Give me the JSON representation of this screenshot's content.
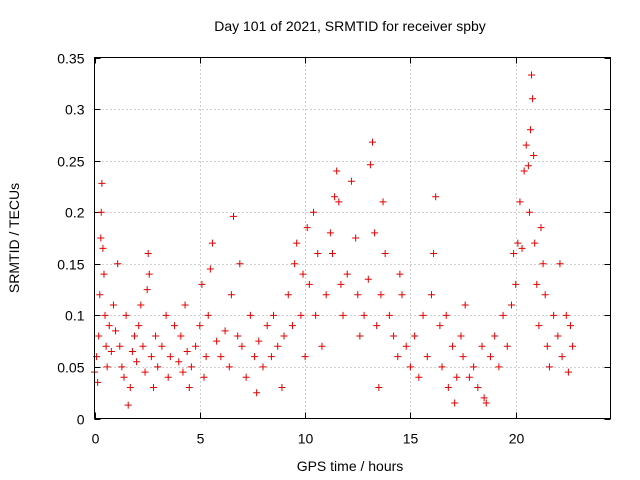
{
  "chart_data": {
    "type": "scatter",
    "title": "Day 101 of 2021, SRMTID for receiver spby",
    "xlabel": "GPS time / hours",
    "ylabel": "SRMTID / TECUs",
    "xlim": [
      0,
      24.5
    ],
    "ylim": [
      0,
      0.35
    ],
    "xticks": [
      0,
      5,
      10,
      15,
      20
    ],
    "xtick_labels": [
      "0",
      "5",
      "10",
      "15",
      "20"
    ],
    "yticks": [
      0,
      0.05,
      0.1,
      0.15,
      0.2,
      0.25,
      0.3,
      0.35
    ],
    "ytick_labels": [
      "0",
      "0.05",
      "0.1",
      "0.15",
      "0.2",
      "0.25",
      "0.3",
      "0.35"
    ],
    "grid": true,
    "marker": "+",
    "color": "#e60000",
    "series": [
      {
        "name": "SRMTID spby",
        "points": [
          [
            0.0,
            0.045
          ],
          [
            0.1,
            0.06
          ],
          [
            0.15,
            0.035
          ],
          [
            0.2,
            0.08
          ],
          [
            0.25,
            0.12
          ],
          [
            0.3,
            0.175
          ],
          [
            0.32,
            0.2
          ],
          [
            0.35,
            0.228
          ],
          [
            0.4,
            0.165
          ],
          [
            0.45,
            0.14
          ],
          [
            0.5,
            0.1
          ],
          [
            0.55,
            0.07
          ],
          [
            0.6,
            0.05
          ],
          [
            0.7,
            0.09
          ],
          [
            0.8,
            0.065
          ],
          [
            0.9,
            0.11
          ],
          [
            1.0,
            0.085
          ],
          [
            1.1,
            0.15
          ],
          [
            1.2,
            0.07
          ],
          [
            1.3,
            0.05
          ],
          [
            1.4,
            0.04
          ],
          [
            1.5,
            0.1
          ],
          [
            1.6,
            0.013
          ],
          [
            1.7,
            0.03
          ],
          [
            1.8,
            0.065
          ],
          [
            1.9,
            0.08
          ],
          [
            2.0,
            0.055
          ],
          [
            2.1,
            0.09
          ],
          [
            2.2,
            0.11
          ],
          [
            2.3,
            0.07
          ],
          [
            2.4,
            0.045
          ],
          [
            2.5,
            0.125
          ],
          [
            2.55,
            0.16
          ],
          [
            2.6,
            0.14
          ],
          [
            2.7,
            0.06
          ],
          [
            2.8,
            0.03
          ],
          [
            2.9,
            0.08
          ],
          [
            3.0,
            0.05
          ],
          [
            3.2,
            0.07
          ],
          [
            3.4,
            0.1
          ],
          [
            3.5,
            0.04
          ],
          [
            3.6,
            0.06
          ],
          [
            3.8,
            0.09
          ],
          [
            4.0,
            0.055
          ],
          [
            4.1,
            0.08
          ],
          [
            4.2,
            0.045
          ],
          [
            4.3,
            0.11
          ],
          [
            4.4,
            0.065
          ],
          [
            4.5,
            0.03
          ],
          [
            4.6,
            0.05
          ],
          [
            4.8,
            0.07
          ],
          [
            5.0,
            0.09
          ],
          [
            5.1,
            0.13
          ],
          [
            5.2,
            0.04
          ],
          [
            5.3,
            0.06
          ],
          [
            5.4,
            0.1
          ],
          [
            5.5,
            0.145
          ],
          [
            5.6,
            0.17
          ],
          [
            5.8,
            0.075
          ],
          [
            6.0,
            0.06
          ],
          [
            6.2,
            0.085
          ],
          [
            6.4,
            0.05
          ],
          [
            6.5,
            0.12
          ],
          [
            6.6,
            0.196
          ],
          [
            6.8,
            0.08
          ],
          [
            6.9,
            0.15
          ],
          [
            7.0,
            0.07
          ],
          [
            7.2,
            0.04
          ],
          [
            7.4,
            0.1
          ],
          [
            7.6,
            0.06
          ],
          [
            7.7,
            0.025
          ],
          [
            7.8,
            0.075
          ],
          [
            8.0,
            0.05
          ],
          [
            8.2,
            0.09
          ],
          [
            8.4,
            0.06
          ],
          [
            8.5,
            0.1
          ],
          [
            8.7,
            0.07
          ],
          [
            8.9,
            0.03
          ],
          [
            9.0,
            0.08
          ],
          [
            9.2,
            0.12
          ],
          [
            9.4,
            0.09
          ],
          [
            9.5,
            0.15
          ],
          [
            9.6,
            0.17
          ],
          [
            9.8,
            0.1
          ],
          [
            9.9,
            0.14
          ],
          [
            10.0,
            0.06
          ],
          [
            10.1,
            0.185
          ],
          [
            10.2,
            0.13
          ],
          [
            10.4,
            0.2
          ],
          [
            10.5,
            0.1
          ],
          [
            10.6,
            0.16
          ],
          [
            10.8,
            0.07
          ],
          [
            11.0,
            0.12
          ],
          [
            11.2,
            0.18
          ],
          [
            11.3,
            0.16
          ],
          [
            11.4,
            0.215
          ],
          [
            11.5,
            0.24
          ],
          [
            11.6,
            0.21
          ],
          [
            11.7,
            0.13
          ],
          [
            11.8,
            0.1
          ],
          [
            12.0,
            0.14
          ],
          [
            12.2,
            0.23
          ],
          [
            12.4,
            0.175
          ],
          [
            12.5,
            0.12
          ],
          [
            12.6,
            0.08
          ],
          [
            12.8,
            0.1
          ],
          [
            13.0,
            0.135
          ],
          [
            13.1,
            0.246
          ],
          [
            13.2,
            0.268
          ],
          [
            13.3,
            0.18
          ],
          [
            13.4,
            0.09
          ],
          [
            13.5,
            0.03
          ],
          [
            13.6,
            0.12
          ],
          [
            13.7,
            0.21
          ],
          [
            13.8,
            0.16
          ],
          [
            14.0,
            0.1
          ],
          [
            14.2,
            0.08
          ],
          [
            14.4,
            0.06
          ],
          [
            14.5,
            0.14
          ],
          [
            14.6,
            0.12
          ],
          [
            14.8,
            0.07
          ],
          [
            15.0,
            0.05
          ],
          [
            15.2,
            0.08
          ],
          [
            15.4,
            0.04
          ],
          [
            15.6,
            0.1
          ],
          [
            15.8,
            0.06
          ],
          [
            16.0,
            0.12
          ],
          [
            16.1,
            0.16
          ],
          [
            16.2,
            0.215
          ],
          [
            16.4,
            0.09
          ],
          [
            16.5,
            0.05
          ],
          [
            16.7,
            0.1
          ],
          [
            16.8,
            0.03
          ],
          [
            17.0,
            0.07
          ],
          [
            17.1,
            0.015
          ],
          [
            17.2,
            0.04
          ],
          [
            17.4,
            0.08
          ],
          [
            17.5,
            0.06
          ],
          [
            17.6,
            0.11
          ],
          [
            17.8,
            0.04
          ],
          [
            18.0,
            0.05
          ],
          [
            18.2,
            0.03
          ],
          [
            18.4,
            0.07
          ],
          [
            18.5,
            0.02
          ],
          [
            18.6,
            0.015
          ],
          [
            18.8,
            0.06
          ],
          [
            19.0,
            0.08
          ],
          [
            19.2,
            0.05
          ],
          [
            19.4,
            0.1
          ],
          [
            19.6,
            0.07
          ],
          [
            19.8,
            0.11
          ],
          [
            19.9,
            0.16
          ],
          [
            20.0,
            0.13
          ],
          [
            20.1,
            0.17
          ],
          [
            20.2,
            0.21
          ],
          [
            20.3,
            0.165
          ],
          [
            20.4,
            0.24
          ],
          [
            20.5,
            0.265
          ],
          [
            20.6,
            0.245
          ],
          [
            20.65,
            0.2
          ],
          [
            20.7,
            0.28
          ],
          [
            20.75,
            0.333
          ],
          [
            20.8,
            0.31
          ],
          [
            20.85,
            0.255
          ],
          [
            20.9,
            0.17
          ],
          [
            21.0,
            0.13
          ],
          [
            21.1,
            0.09
          ],
          [
            21.2,
            0.185
          ],
          [
            21.3,
            0.15
          ],
          [
            21.4,
            0.12
          ],
          [
            21.5,
            0.07
          ],
          [
            21.6,
            0.05
          ],
          [
            21.8,
            0.1
          ],
          [
            22.0,
            0.08
          ],
          [
            22.1,
            0.15
          ],
          [
            22.2,
            0.06
          ],
          [
            22.4,
            0.1
          ],
          [
            22.5,
            0.045
          ],
          [
            22.6,
            0.09
          ],
          [
            22.7,
            0.07
          ]
        ]
      }
    ]
  }
}
